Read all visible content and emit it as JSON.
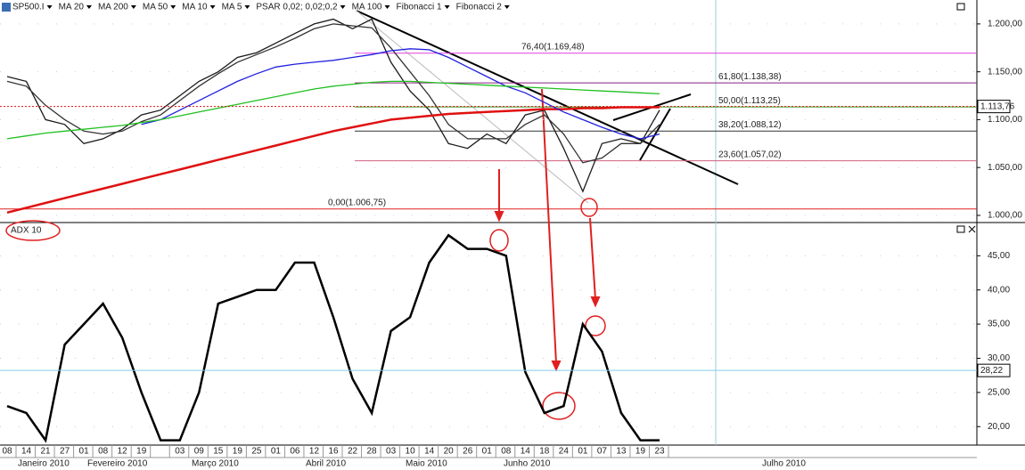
{
  "chart_data": [
    {
      "type": "line",
      "categories": [
        "08",
        "14",
        "21",
        "27",
        "01",
        "08",
        "12",
        "19",
        null,
        "03",
        "09",
        "15",
        "19",
        "25",
        "01",
        "06",
        "12",
        "16",
        "22",
        "28",
        "03",
        "10",
        "14",
        "20",
        "26",
        "01",
        "08",
        "14",
        "18",
        "24",
        "01",
        "07",
        "13",
        "19",
        "23"
      ],
      "months": [
        "Janeiro 2010",
        "Fevereiro 2010",
        "Março 2010",
        "Abril 2010",
        "Maio 2010",
        "Junho 2010",
        "Julho 2010"
      ],
      "ylim": [
        994.4,
        1225
      ],
      "yticks": [
        {
          "value": 1000,
          "label": "1.000,00"
        },
        {
          "value": 1050,
          "label": "1.050,00"
        },
        {
          "value": 1100,
          "label": "1.100,00"
        },
        {
          "value": 1150,
          "label": "1.150,00"
        },
        {
          "value": 1200,
          "label": "1.200,00"
        }
      ],
      "series": [
        {
          "name": "SP500.I",
          "color": "#1a1a1a",
          "values": [
            1145,
            1140,
            1100,
            1095,
            1075,
            1080,
            1090,
            1105,
            1110,
            1125,
            1140,
            1150,
            1165,
            1170,
            1180,
            1190,
            1200,
            1205,
            1195,
            1205,
            1160,
            1130,
            1110,
            1075,
            1070,
            1085,
            1075,
            1105,
            1110,
            1070,
            1025,
            1075,
            1080,
            1075,
            1110
          ]
        },
        {
          "name": "MA 20",
          "color": "#333333",
          "values": [
            1140,
            1135,
            1115,
            1100,
            1088,
            1085,
            1088,
            1098,
            1105,
            1120,
            1135,
            1148,
            1160,
            1168,
            1176,
            1185,
            1195,
            1200,
            1198,
            1196,
            1175,
            1150,
            1125,
            1095,
            1080,
            1080,
            1080,
            1095,
            1105,
            1085,
            1055,
            1060,
            1075,
            1075,
            1095
          ]
        },
        {
          "name": "MA 200",
          "color": "#e01010",
          "values": [
            1003,
            1008,
            1013,
            1018,
            1023,
            1028,
            1033,
            1038,
            1043,
            1048,
            1053,
            1058,
            1063,
            1068,
            1073,
            1078,
            1083,
            1088,
            1092,
            1096,
            1100,
            1102,
            1104,
            1106,
            1107,
            1108,
            1109,
            1110,
            1111,
            1111,
            1112,
            1112,
            1113,
            1113,
            1113
          ]
        },
        {
          "name": "MA 50",
          "color": "#2020e0",
          "values": [
            null,
            null,
            null,
            null,
            null,
            null,
            null,
            1095,
            1100,
            1110,
            1120,
            1130,
            1140,
            1148,
            1155,
            1158,
            1160,
            1162,
            1165,
            1168,
            1172,
            1174,
            1173,
            1165,
            1155,
            1145,
            1135,
            1128,
            1118,
            1108,
            1100,
            1092,
            1085,
            1080,
            1085
          ]
        },
        {
          "name": "MA 10",
          "color": "#b05070"
        },
        {
          "name": "MA 5",
          "color": "#d06060"
        },
        {
          "name": "PSAR 0,02; 0,02;0,2",
          "color": "#000000"
        },
        {
          "name": "MA 100",
          "color": "#20c020",
          "values": [
            1080,
            1083,
            1086,
            1088,
            1090,
            1092,
            1094,
            1097,
            1100,
            1104,
            1108,
            1112,
            1116,
            1120,
            1124,
            1128,
            1132,
            1135,
            1137,
            1139,
            1140,
            1140,
            1139,
            1138,
            1137,
            1136,
            1135,
            1134,
            1133,
            1132,
            1131,
            1130,
            1129,
            1128,
            1127
          ]
        },
        {
          "name": "Fibonacci 1",
          "color": "#000000"
        },
        {
          "name": "Fibonacci 2",
          "color": "#000000"
        }
      ],
      "fib_levels": [
        {
          "value": 1169.48,
          "label": "76,40(1.169,48)",
          "color": "#e040e0"
        },
        {
          "value": 1138.38,
          "label": "61,80(1.138,38)",
          "color": "#8a2080"
        },
        {
          "value": 1113.25,
          "label": "50,00(1.113,25)",
          "color": "#20a020"
        },
        {
          "value": 1088.12,
          "label": "38,20(1.088,12)",
          "color": "#333333"
        },
        {
          "value": 1057.02,
          "label": "23,60(1.057,02)",
          "color": "#d06080"
        },
        {
          "value": 1006.75,
          "label": "0,00(1.006,75)",
          "color": "#e02020"
        }
      ],
      "last": {
        "value": 1113.76,
        "label": "1.113,76",
        "color": "#e01010"
      }
    },
    {
      "type": "line",
      "title": "ADX 10",
      "ylim": [
        17.3,
        49.6
      ],
      "yticks": [
        {
          "value": 20,
          "label": "20,00"
        },
        {
          "value": 25,
          "label": "25,00"
        },
        {
          "value": 30,
          "label": "30,00"
        },
        {
          "value": 35,
          "label": "35,00"
        },
        {
          "value": 40,
          "label": "40,00"
        },
        {
          "value": 45,
          "label": "45,00"
        }
      ],
      "series": [
        {
          "name": "ADX 10",
          "color": "#000000",
          "values": [
            23,
            22,
            18,
            32,
            35,
            38,
            33,
            25,
            18,
            18,
            25,
            38,
            39,
            40,
            40,
            44,
            44,
            36,
            27,
            22,
            34,
            36,
            44,
            48,
            46,
            46,
            45,
            28,
            22,
            23,
            35,
            31,
            22,
            18,
            18
          ]
        }
      ],
      "last": {
        "value": 28.22,
        "label": "28,22",
        "color": "#88ccee"
      }
    }
  ]
}
